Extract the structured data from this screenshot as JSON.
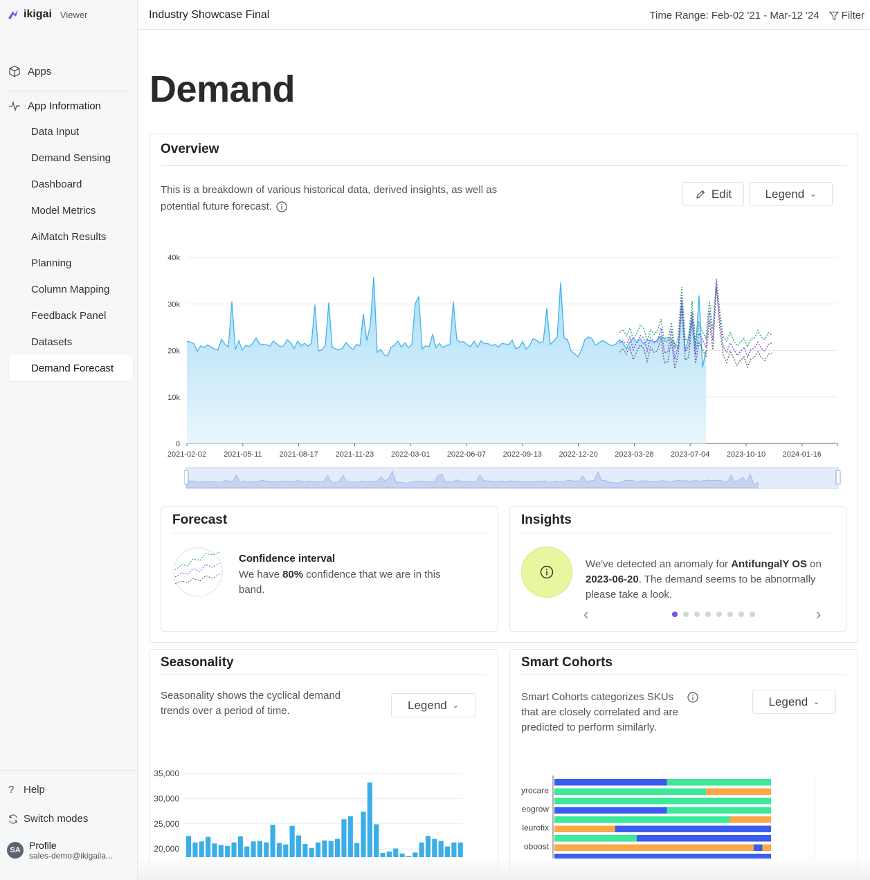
{
  "sidebar": {
    "logo_text": "ikigai",
    "mode_label": "Viewer",
    "apps_label": "Apps",
    "app_info_label": "App Information",
    "items": [
      {
        "label": "Data Input"
      },
      {
        "label": "Demand Sensing"
      },
      {
        "label": "Dashboard"
      },
      {
        "label": "Model Metrics"
      },
      {
        "label": "AiMatch Results"
      },
      {
        "label": "Planning"
      },
      {
        "label": "Column Mapping"
      },
      {
        "label": "Feedback Panel"
      },
      {
        "label": "Datasets"
      },
      {
        "label": "Demand Forecast",
        "active": true
      }
    ],
    "help_label": "Help",
    "switch_label": "Switch modes",
    "profile": {
      "initials": "SA",
      "name": "Profile",
      "email": "sales-demo@ikigaila..."
    }
  },
  "header": {
    "title": "Industry Showcase Final",
    "time_range": "Time Range: Feb-02 '21 - Mar-12 '24",
    "filter_label": "Filter"
  },
  "page_title": "Demand",
  "overview": {
    "title": "Overview",
    "description_1": "This is a breakdown of various historical data, derived insights, as well as",
    "description_2": "potential future forecast.",
    "edit_label": "Edit",
    "legend_label": "Legend"
  },
  "chart_data": [
    {
      "type": "area",
      "y_ticks": [
        "0",
        "10k",
        "20k",
        "30k",
        "40k"
      ],
      "ylim": [
        0,
        40000
      ],
      "x_ticks": [
        "2021-02-02",
        "2021-05-11",
        "2021-08-17",
        "2021-11-23",
        "2022-03-01",
        "2022-06-07",
        "2022-09-13",
        "2022-12-20",
        "2023-03-28",
        "2023-07-04",
        "2023-10-10",
        "2024-01-16"
      ],
      "history": [
        22000,
        21800,
        21500,
        19800,
        21000,
        20600,
        21200,
        20700,
        20300,
        20100,
        22400,
        21300,
        20800,
        30500,
        20200,
        22100,
        20100,
        21100,
        20800,
        21500,
        22700,
        21400,
        21300,
        21200,
        20900,
        22000,
        21400,
        20800,
        21000,
        22300,
        21700,
        20400,
        22000,
        21000,
        21500,
        20900,
        21600,
        29800,
        19900,
        20100,
        21000,
        30300,
        20700,
        20300,
        20100,
        20500,
        21700,
        20800,
        20200,
        21300,
        21000,
        27800,
        22100,
        25400,
        35800,
        19600,
        20200,
        19100,
        18800,
        20700,
        21100,
        22000,
        20700,
        21600,
        20600,
        21200,
        30100,
        31500,
        20300,
        21000,
        20800,
        23400,
        20600,
        21500,
        20600,
        21100,
        21200,
        30500,
        22300,
        21800,
        21900,
        21200,
        20800,
        22000,
        20700,
        22100,
        21400,
        21500,
        21000,
        21300,
        20700,
        21500,
        21400,
        21200,
        22200,
        20400,
        20600,
        21900,
        20300,
        21000,
        22500,
        22200,
        21600,
        21900,
        29100,
        21300,
        22000,
        22900,
        34600,
        22700,
        22300,
        19900,
        19300,
        18600,
        20000,
        22300,
        22900,
        22600,
        21100,
        21600,
        22100,
        21800,
        21300,
        21000,
        21400,
        22300,
        21600,
        20300,
        21800,
        22600,
        21700,
        22500,
        21400,
        22100,
        22200,
        21600,
        22400,
        23100,
        22500,
        22800,
        22500,
        21500,
        20600,
        30700,
        20000,
        22800,
        27300,
        20300,
        31800,
        16300,
        20000
      ],
      "forecast_mid": [
        21600,
        22000,
        21200,
        22900,
        20100,
        21800,
        23200,
        22700,
        19900,
        22700,
        21900,
        21800,
        24800,
        19400,
        19800,
        24500,
        18100,
        21100,
        31500,
        19700,
        20800,
        28300,
        19100,
        23700,
        22300,
        20600,
        28500,
        22100,
        34700,
        26700,
        20800,
        19600,
        21600,
        20300,
        18900,
        19800,
        20700,
        18600,
        20200,
        20500,
        21800,
        20400,
        19900,
        21300,
        21600
      ],
      "forecast_high": [
        23800,
        24500,
        23100,
        24800,
        22400,
        23600,
        25400,
        24800,
        22100,
        24500,
        23400,
        24200,
        26700,
        21900,
        22000,
        26000,
        20500,
        23000,
        33600,
        22100,
        22900,
        30600,
        21500,
        25900,
        24000,
        22600,
        30500,
        24300,
        35400,
        28400,
        22800,
        22000,
        23800,
        22200,
        21000,
        21800,
        22600,
        20800,
        22500,
        22600,
        24300,
        22800,
        22400,
        23800,
        23300
      ],
      "forecast_low": [
        19600,
        20400,
        19200,
        20700,
        18000,
        19800,
        21200,
        20400,
        17700,
        20600,
        19600,
        19900,
        22700,
        17200,
        17600,
        22300,
        16100,
        19200,
        29400,
        17900,
        18600,
        26300,
        17200,
        21600,
        20300,
        18600,
        26400,
        20100,
        33600,
        24700,
        18800,
        17400,
        19900,
        18300,
        16800,
        17900,
        18600,
        16400,
        18200,
        18500,
        19700,
        18500,
        17800,
        19200,
        19400
      ]
    },
    {
      "type": "bar",
      "title": "Seasonality",
      "y_ticks": [
        "20,000",
        "25,000",
        "30,000",
        "35,000"
      ],
      "ylim": [
        19200,
        35000
      ],
      "values": [
        22600,
        21300,
        21500,
        22400,
        21100,
        20800,
        20600,
        21300,
        22500,
        20500,
        21500,
        21600,
        21300,
        24800,
        21200,
        20900,
        24600,
        22700,
        21000,
        20200,
        21300,
        21700,
        21600,
        22000,
        25900,
        26500,
        21200,
        27400,
        33200,
        24900,
        19200,
        19500,
        20100,
        19100,
        18600,
        19300,
        21300,
        22600,
        22000,
        21600,
        20500,
        21300,
        21300
      ],
      "colors": [
        "#3aaee8"
      ]
    },
    {
      "type": "bar",
      "title": "Smart Cohorts",
      "categories": [
        "yrocare",
        "eogrow",
        "leurofix",
        "oboost"
      ],
      "rows": [
        [
          [
            "#3b5cf0",
            0.52
          ],
          [
            "#3ee89a",
            0.48
          ]
        ],
        [
          [
            "#3ee89a",
            0.7
          ],
          [
            "#fba846",
            0.3
          ]
        ],
        [
          [
            "#3ee89a",
            1.0
          ]
        ],
        [
          [
            "#3b5cf0",
            0.52
          ],
          [
            "#3ee89a",
            0.48
          ]
        ],
        [
          [
            "#3ee89a",
            0.81
          ],
          [
            "#fba846",
            0.19
          ]
        ],
        [
          [
            "#fba846",
            0.28
          ],
          [
            "#3b5cf0",
            0.72
          ]
        ],
        [
          [
            "#3ee89a",
            0.38
          ],
          [
            "#3b5cf0",
            0.62
          ]
        ],
        [
          [
            "#fba846",
            0.92
          ],
          [
            "#3b5cf0",
            0.04
          ],
          [
            "#fba846",
            0.04
          ]
        ],
        [
          [
            "#3b5cf0",
            1.0
          ]
        ]
      ]
    }
  ],
  "forecast": {
    "title": "Forecast",
    "ci_title": "Confidence interval",
    "ci_text_pre": "We have ",
    "ci_pct": "80%",
    "ci_text_post": " confidence that we are in this",
    "ci_text_2": "band."
  },
  "insights": {
    "title": "Insights",
    "line1_pre": "We've detected an anomaly for ",
    "line1_bold": "AntifungalY OS",
    "line1_post": " on",
    "line2_bold": "2023-06-20",
    "line2_post": ". The demand seems to be abnormally",
    "line3": "please take a look.",
    "dots": 8,
    "active_dot": 0
  },
  "seasonality": {
    "title": "Seasonality",
    "description_1": "Seasonality shows the cyclical demand",
    "description_2": "trends over a period of time.",
    "legend_label": "Legend"
  },
  "smart_cohorts": {
    "title": "Smart Cohorts",
    "description_1": "Smart Cohorts categorizes SKUs",
    "description_2": "that are closely correlated and are",
    "description_3": "predicted to perform similarly.",
    "legend_label": "Legend"
  },
  "colors": {
    "area_fill": "#a9dcf7",
    "area_stroke": "#41b4ea",
    "forecast_mid": "#8a4ce6",
    "forecast_high": "#2fb06b",
    "forecast_low": "#6a6a7a",
    "insight_circle": "#e6f7a0"
  }
}
